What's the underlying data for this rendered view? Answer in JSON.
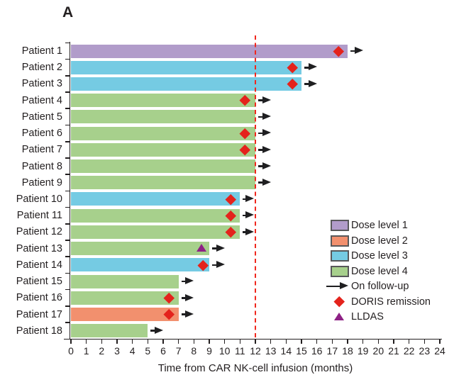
{
  "panel_label": "A",
  "chart_data": {
    "type": "bar",
    "subtype": "swimmer-plot",
    "xlabel": "Time from CAR NK-cell infusion (months)",
    "xlim": [
      0,
      24
    ],
    "xticks": [
      0,
      1,
      2,
      3,
      4,
      5,
      6,
      7,
      8,
      9,
      10,
      11,
      12,
      13,
      14,
      15,
      16,
      17,
      18,
      19,
      20,
      21,
      22,
      23,
      24
    ],
    "reference_line": {
      "x_months": 12,
      "style": "dashed",
      "color": "#f0281e"
    },
    "patients": [
      {
        "label": "Patient 1",
        "dose_level": 1,
        "bar_end_months": 18,
        "doris_remission_months": 17.4,
        "lldas_months": null,
        "follow_up_arrow_to_months": 19
      },
      {
        "label": "Patient 2",
        "dose_level": 3,
        "bar_end_months": 15,
        "doris_remission_months": 14.4,
        "lldas_months": null,
        "follow_up_arrow_to_months": 16
      },
      {
        "label": "Patient 3",
        "dose_level": 3,
        "bar_end_months": 15,
        "doris_remission_months": 14.4,
        "lldas_months": null,
        "follow_up_arrow_to_months": 16
      },
      {
        "label": "Patient 4",
        "dose_level": 4,
        "bar_end_months": 12,
        "doris_remission_months": 11.3,
        "lldas_months": null,
        "follow_up_arrow_to_months": 13
      },
      {
        "label": "Patient 5",
        "dose_level": 4,
        "bar_end_months": 12,
        "doris_remission_months": null,
        "lldas_months": null,
        "follow_up_arrow_to_months": 13
      },
      {
        "label": "Patient 6",
        "dose_level": 4,
        "bar_end_months": 12,
        "doris_remission_months": 11.3,
        "lldas_months": null,
        "follow_up_arrow_to_months": 13
      },
      {
        "label": "Patient 7",
        "dose_level": 4,
        "bar_end_months": 12,
        "doris_remission_months": 11.3,
        "lldas_months": null,
        "follow_up_arrow_to_months": 13
      },
      {
        "label": "Patient 8",
        "dose_level": 4,
        "bar_end_months": 12,
        "doris_remission_months": null,
        "lldas_months": null,
        "follow_up_arrow_to_months": 13
      },
      {
        "label": "Patient 9",
        "dose_level": 4,
        "bar_end_months": 12,
        "doris_remission_months": null,
        "lldas_months": null,
        "follow_up_arrow_to_months": 13
      },
      {
        "label": "Patient 10",
        "dose_level": 3,
        "bar_end_months": 11,
        "doris_remission_months": 10.4,
        "lldas_months": null,
        "follow_up_arrow_to_months": 11.9
      },
      {
        "label": "Patient 11",
        "dose_level": 4,
        "bar_end_months": 11,
        "doris_remission_months": 10.4,
        "lldas_months": null,
        "follow_up_arrow_to_months": 11.9
      },
      {
        "label": "Patient 12",
        "dose_level": 4,
        "bar_end_months": 11,
        "doris_remission_months": 10.4,
        "lldas_months": null,
        "follow_up_arrow_to_months": 11.9
      },
      {
        "label": "Patient 13",
        "dose_level": 4,
        "bar_end_months": 9,
        "doris_remission_months": null,
        "lldas_months": 8.5,
        "follow_up_arrow_to_months": 10
      },
      {
        "label": "Patient 14",
        "dose_level": 3,
        "bar_end_months": 9,
        "doris_remission_months": 8.6,
        "lldas_months": null,
        "follow_up_arrow_to_months": 10
      },
      {
        "label": "Patient 15",
        "dose_level": 4,
        "bar_end_months": 7,
        "doris_remission_months": null,
        "lldas_months": null,
        "follow_up_arrow_to_months": 8
      },
      {
        "label": "Patient 16",
        "dose_level": 4,
        "bar_end_months": 7,
        "doris_remission_months": 6.4,
        "lldas_months": null,
        "follow_up_arrow_to_months": 8
      },
      {
        "label": "Patient 17",
        "dose_level": 2,
        "bar_end_months": 7,
        "doris_remission_months": 6.4,
        "lldas_months": null,
        "follow_up_arrow_to_months": 8
      },
      {
        "label": "Patient 18",
        "dose_level": 4,
        "bar_end_months": 5,
        "doris_remission_months": null,
        "lldas_months": null,
        "follow_up_arrow_to_months": 6
      }
    ],
    "legend": {
      "position": "right-bottom",
      "items": [
        {
          "label": "Dose level 1",
          "swatch": "box",
          "color": "#b19cca"
        },
        {
          "label": "Dose level 2",
          "swatch": "box",
          "color": "#f2906e"
        },
        {
          "label": "Dose level 3",
          "swatch": "box",
          "color": "#75cbe3"
        },
        {
          "label": "Dose level 4",
          "swatch": "box",
          "color": "#a7d08c"
        },
        {
          "label": "On follow-up",
          "swatch": "arrow",
          "color": "#1f1f21"
        },
        {
          "label": "DORIS remission",
          "swatch": "diamond",
          "color": "#e4231c"
        },
        {
          "label": "LLDAS",
          "swatch": "triangle",
          "color": "#8e2185"
        }
      ]
    },
    "colors": {
      "dose_level_1": "#b19cca",
      "dose_level_2": "#f2906e",
      "dose_level_3": "#75cbe3",
      "dose_level_4": "#a7d08c",
      "doris_marker": "#e4231c",
      "lldas_marker": "#8e2185",
      "reference_line": "#f0281e",
      "axis": "#231f20"
    }
  }
}
